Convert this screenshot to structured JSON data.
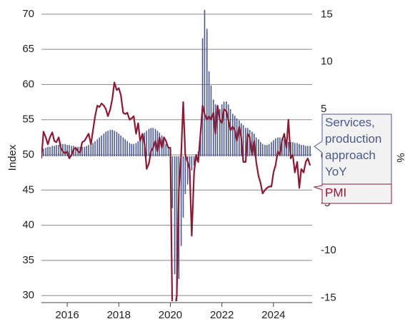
{
  "chart_data": {
    "type": "bar-line",
    "ylabel": "Index",
    "y2label": "%",
    "xlim": [
      2015,
      2025.5
    ],
    "xticks": [
      2016,
      2018,
      2020,
      2022,
      2024
    ],
    "ylim": [
      29,
      71
    ],
    "yticks": [
      30,
      35,
      40,
      45,
      50,
      55,
      60,
      65,
      70
    ],
    "y2lim": [
      -15.5,
      15.8
    ],
    "y2ticks": [
      -15,
      -10,
      -5,
      0,
      5,
      10,
      15
    ],
    "grid": true,
    "x": [
      2015,
      2015.08,
      2015.17,
      2015.25,
      2015.33,
      2015.42,
      2015.5,
      2015.58,
      2015.67,
      2015.75,
      2015.83,
      2015.92,
      2016,
      2016.08,
      2016.17,
      2016.25,
      2016.33,
      2016.42,
      2016.5,
      2016.58,
      2016.67,
      2016.75,
      2016.83,
      2016.92,
      2017,
      2017.08,
      2017.17,
      2017.25,
      2017.33,
      2017.42,
      2017.5,
      2017.58,
      2017.67,
      2017.75,
      2017.83,
      2017.92,
      2018,
      2018.08,
      2018.17,
      2018.25,
      2018.33,
      2018.42,
      2018.5,
      2018.58,
      2018.67,
      2018.75,
      2018.83,
      2018.92,
      2019,
      2019.08,
      2019.17,
      2019.25,
      2019.33,
      2019.42,
      2019.5,
      2019.58,
      2019.67,
      2019.75,
      2019.83,
      2019.92,
      2020,
      2020.08,
      2020.17,
      2020.25,
      2020.33,
      2020.42,
      2020.5,
      2020.58,
      2020.67,
      2020.75,
      2020.83,
      2020.92,
      2021,
      2021.08,
      2021.17,
      2021.25,
      2021.33,
      2021.42,
      2021.5,
      2021.58,
      2021.67,
      2021.75,
      2021.83,
      2021.92,
      2022,
      2022.08,
      2022.17,
      2022.25,
      2022.33,
      2022.42,
      2022.5,
      2022.58,
      2022.67,
      2022.75,
      2022.83,
      2022.92,
      2023,
      2023.08,
      2023.17,
      2023.25,
      2023.33,
      2023.42,
      2023.5,
      2023.58,
      2023.67,
      2023.75,
      2023.83,
      2023.92,
      2024,
      2024.08,
      2024.17,
      2024.25,
      2024.33,
      2024.42,
      2024.5,
      2024.58,
      2024.67,
      2024.75,
      2024.83,
      2024.92,
      2025,
      2025.08,
      2025.17,
      2025.25,
      2025.33,
      2025.42
    ],
    "series": [
      {
        "name": "Services, production approach YoY",
        "color": "#4a5a8c",
        "kind": "bar",
        "axis": "y2",
        "values": [
          0.6,
          0.8,
          0.9,
          1,
          1,
          1.1,
          1.1,
          1.2,
          1.2,
          1.3,
          1.3,
          1.3,
          1.2,
          1.2,
          1.1,
          1.1,
          1,
          1,
          1,
          1,
          1,
          1.1,
          1.2,
          1.3,
          1.4,
          1.6,
          1.8,
          2,
          2.2,
          2.4,
          2.6,
          2.7,
          2.8,
          2.8,
          2.7,
          2.6,
          2.4,
          2.2,
          2,
          1.8,
          1.6,
          1.4,
          1.3,
          1.3,
          1.4,
          1.6,
          1.9,
          2.2,
          2.5,
          2.7,
          2.9,
          3,
          3,
          2.9,
          2.7,
          2.5,
          2.2,
          1.8,
          1.3,
          0.8,
          0.3,
          -5.5,
          -12.5,
          -15.5,
          -13,
          -9.5,
          -6.5,
          -4,
          -3,
          -2.5,
          -1.5,
          -1,
          -0.5,
          0.5,
          2,
          12.5,
          15.5,
          13.5,
          9,
          7.5,
          6,
          5.5,
          5,
          5,
          5.5,
          5.8,
          5.8,
          5.5,
          5,
          4.5,
          4.3,
          4,
          3.8,
          3.5,
          3.3,
          3,
          3,
          2.8,
          2.6,
          2.4,
          2,
          1.8,
          1.5,
          1.3,
          1.2,
          1.2,
          1.3,
          1.5,
          1.7,
          1.9,
          2,
          2,
          1.9,
          1.8,
          1.6,
          1.5,
          1.5,
          1.5,
          1.4,
          1.4,
          1.3,
          1.2,
          1.2,
          1.1,
          1.1,
          1.1
        ]
      },
      {
        "name": "PMI",
        "color": "#8b1a34",
        "kind": "line",
        "values": [
          49.5,
          53.3,
          52.5,
          51.5,
          52.5,
          53.2,
          52,
          51.8,
          52.5,
          51,
          50.5,
          50.2,
          50.5,
          49.5,
          50,
          50.8,
          51,
          50.5,
          50.3,
          51.8,
          52,
          52.5,
          53,
          51.5,
          53.5,
          55.5,
          57,
          56.8,
          57.3,
          57,
          56.5,
          55.5,
          56.5,
          58,
          60.3,
          59.2,
          59.5,
          58.5,
          56,
          55.8,
          56,
          55,
          55.2,
          55.5,
          53,
          54.5,
          52,
          53,
          51.5,
          48,
          48.8,
          50.5,
          51,
          52,
          50.5,
          52.5,
          51,
          52.5,
          52,
          51,
          51,
          26,
          28,
          30,
          45,
          50,
          57.5,
          50,
          49,
          48,
          38.5,
          47.5,
          50,
          49,
          53,
          57,
          55.8,
          55,
          55.5,
          55,
          56,
          53,
          57,
          55,
          54.5,
          56.5,
          56.2,
          55,
          53.5,
          54,
          53.5,
          52,
          54,
          52.5,
          49,
          49,
          53,
          52.5,
          50,
          52,
          49,
          47,
          46,
          44.5,
          45,
          45.3,
          45.5,
          45.5,
          47.5,
          48.5,
          50.5,
          50,
          52,
          53,
          51,
          55,
          49.5,
          50,
          47.5,
          49,
          45.3,
          48,
          47.5,
          49,
          49.5,
          48.5
        ]
      }
    ]
  }
}
